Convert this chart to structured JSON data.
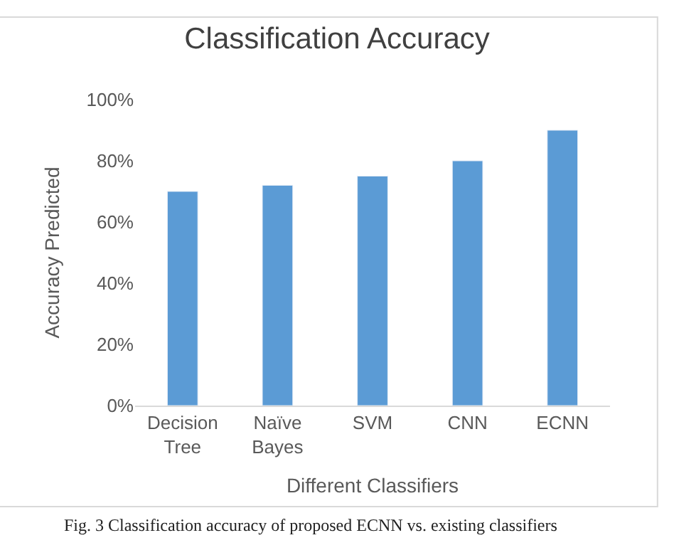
{
  "chart_data": {
    "type": "bar",
    "title": "Classification Accuracy",
    "xlabel": "Different Classifiers",
    "ylabel": "Accuracy Predicted",
    "categories": [
      "Decision Tree",
      "Naïve Bayes",
      "SVM",
      "CNN",
      "ECNN"
    ],
    "values": [
      70,
      72,
      75,
      80,
      90
    ],
    "color": "#5b9bd5",
    "ylim": [
      0,
      100
    ],
    "yticks": [
      {
        "value": 0,
        "label": "0%"
      },
      {
        "value": 20,
        "label": "20%"
      },
      {
        "value": 40,
        "label": "40%"
      },
      {
        "value": 60,
        "label": "60%"
      },
      {
        "value": 80,
        "label": "80%"
      },
      {
        "value": 100,
        "label": "100%"
      }
    ],
    "grid": false,
    "legend": false,
    "annotations": [
      "Fig. 3 Classification accuracy of proposed ECNN vs. existing classifiers"
    ]
  }
}
